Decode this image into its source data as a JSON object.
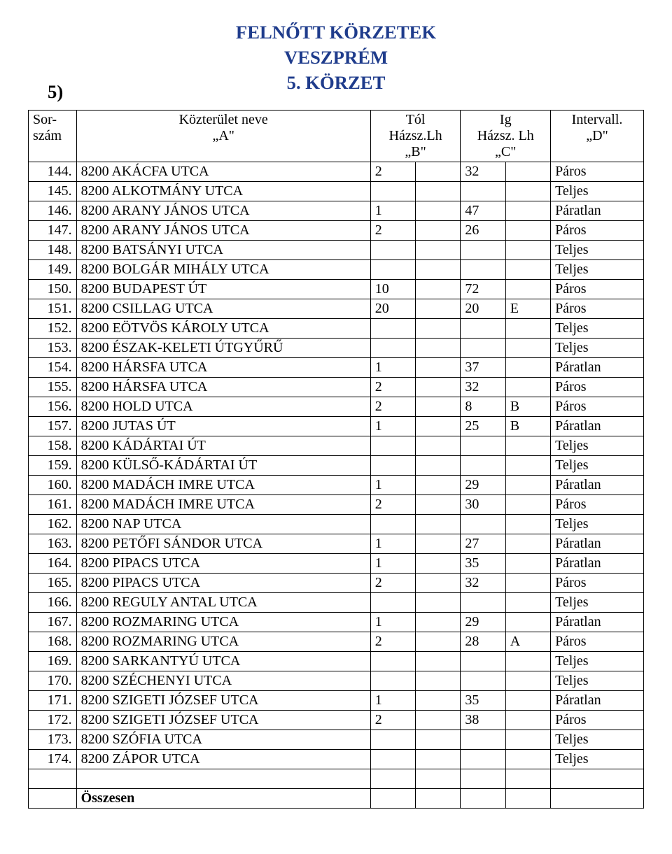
{
  "title": {
    "line1": "FELNŐTT KÖRZETEK",
    "line2": "VESZPRÉM",
    "line3": "5. KÖRZET",
    "color": "#1f3c8c",
    "fontsize_pt": 20
  },
  "district_number": "5)",
  "header": {
    "sorszam": "Sor-\nszám",
    "nev": "Közterület neve\n„A\"",
    "tol": "Tól\nHázsz.Lh\n„B\"",
    "ig": "Ig\nHázsz. Lh\n„C\"",
    "intervall": "Intervall.\n„D\""
  },
  "rows": [
    {
      "n": "144.",
      "name": "8200 AKÁCFA UTCA",
      "tol": "2",
      "tolx": "",
      "ig": "32",
      "igx": "",
      "int": "Páros"
    },
    {
      "n": "145.",
      "name": "8200 ALKOTMÁNY UTCA",
      "tol": "",
      "tolx": "",
      "ig": "",
      "igx": "",
      "int": "Teljes"
    },
    {
      "n": "146.",
      "name": "8200 ARANY JÁNOS UTCA",
      "tol": "1",
      "tolx": "",
      "ig": "47",
      "igx": "",
      "int": "Páratlan"
    },
    {
      "n": "147.",
      "name": "8200 ARANY JÁNOS UTCA",
      "tol": "2",
      "tolx": "",
      "ig": "26",
      "igx": "",
      "int": "Páros"
    },
    {
      "n": "148.",
      "name": "8200 BATSÁNYI UTCA",
      "tol": "",
      "tolx": "",
      "ig": "",
      "igx": "",
      "int": "Teljes"
    },
    {
      "n": "149.",
      "name": "8200 BOLGÁR MIHÁLY UTCA",
      "tol": "",
      "tolx": "",
      "ig": "",
      "igx": "",
      "int": "Teljes"
    },
    {
      "n": "150.",
      "name": "8200 BUDAPEST ÚT",
      "tol": "10",
      "tolx": "",
      "ig": "72",
      "igx": "",
      "int": "Páros"
    },
    {
      "n": "151.",
      "name": "8200 CSILLAG UTCA",
      "tol": "20",
      "tolx": "",
      "ig": "20",
      "igx": "E",
      "int": "Páros"
    },
    {
      "n": "152.",
      "name": "8200 EÖTVÖS KÁROLY UTCA",
      "tol": "",
      "tolx": "",
      "ig": "",
      "igx": "",
      "int": "Teljes"
    },
    {
      "n": "153.",
      "name": "8200 ÉSZAK-KELETI ÚTGYŰRŰ",
      "tol": "",
      "tolx": "",
      "ig": "",
      "igx": "",
      "int": "Teljes"
    },
    {
      "n": "154.",
      "name": "8200 HÁRSFA UTCA",
      "tol": "1",
      "tolx": "",
      "ig": "37",
      "igx": "",
      "int": "Páratlan"
    },
    {
      "n": "155.",
      "name": "8200 HÁRSFA UTCA",
      "tol": "2",
      "tolx": "",
      "ig": "32",
      "igx": "",
      "int": "Páros"
    },
    {
      "n": "156.",
      "name": "8200 HOLD UTCA",
      "tol": "2",
      "tolx": "",
      "ig": "8",
      "igx": "B",
      "int": "Páros"
    },
    {
      "n": "157.",
      "name": "8200 JUTAS ÚT",
      "tol": "1",
      "tolx": "",
      "ig": "25",
      "igx": "B",
      "int": "Páratlan"
    },
    {
      "n": "158.",
      "name": "8200 KÁDÁRTAI ÚT",
      "tol": "",
      "tolx": "",
      "ig": "",
      "igx": "",
      "int": "Teljes"
    },
    {
      "n": "159.",
      "name": "8200 KÜLSŐ-KÁDÁRTAI ÚT",
      "tol": "",
      "tolx": "",
      "ig": "",
      "igx": "",
      "int": "Teljes"
    },
    {
      "n": "160.",
      "name": "8200 MADÁCH IMRE UTCA",
      "tol": "1",
      "tolx": "",
      "ig": "29",
      "igx": "",
      "int": "Páratlan"
    },
    {
      "n": "161.",
      "name": "8200 MADÁCH IMRE UTCA",
      "tol": "2",
      "tolx": "",
      "ig": "30",
      "igx": "",
      "int": "Páros"
    },
    {
      "n": "162.",
      "name": "8200 NAP UTCA",
      "tol": "",
      "tolx": "",
      "ig": "",
      "igx": "",
      "int": "Teljes"
    },
    {
      "n": "163.",
      "name": "8200 PETŐFI SÁNDOR UTCA",
      "tol": "1",
      "tolx": "",
      "ig": "27",
      "igx": "",
      "int": "Páratlan"
    },
    {
      "n": "164.",
      "name": "8200 PIPACS UTCA",
      "tol": "1",
      "tolx": "",
      "ig": "35",
      "igx": "",
      "int": "Páratlan"
    },
    {
      "n": "165.",
      "name": "8200 PIPACS UTCA",
      "tol": "2",
      "tolx": "",
      "ig": "32",
      "igx": "",
      "int": "Páros"
    },
    {
      "n": "166.",
      "name": "8200 REGULY ANTAL UTCA",
      "tol": "",
      "tolx": "",
      "ig": "",
      "igx": "",
      "int": "Teljes"
    },
    {
      "n": "167.",
      "name": "8200 ROZMARING UTCA",
      "tol": "1",
      "tolx": "",
      "ig": "29",
      "igx": "",
      "int": "Páratlan"
    },
    {
      "n": "168.",
      "name": "8200 ROZMARING UTCA",
      "tol": "2",
      "tolx": "",
      "ig": "28",
      "igx": "A",
      "int": "Páros"
    },
    {
      "n": "169.",
      "name": "8200 SARKANTYÚ UTCA",
      "tol": "",
      "tolx": "",
      "ig": "",
      "igx": "",
      "int": "Teljes"
    },
    {
      "n": "170.",
      "name": "8200 SZÉCHENYI UTCA",
      "tol": "",
      "tolx": "",
      "ig": "",
      "igx": "",
      "int": "Teljes"
    },
    {
      "n": "171.",
      "name": "8200 SZIGETI JÓZSEF UTCA",
      "tol": "1",
      "tolx": "",
      "ig": "35",
      "igx": "",
      "int": "Páratlan"
    },
    {
      "n": "172.",
      "name": "8200 SZIGETI JÓZSEF UTCA",
      "tol": "2",
      "tolx": "",
      "ig": "38",
      "igx": "",
      "int": "Páros"
    },
    {
      "n": "173.",
      "name": "8200 SZÓFIA UTCA",
      "tol": "",
      "tolx": "",
      "ig": "",
      "igx": "",
      "int": "Teljes"
    },
    {
      "n": "174.",
      "name": "8200 ZÁPOR UTCA",
      "tol": "",
      "tolx": "",
      "ig": "",
      "igx": "",
      "int": "Teljes"
    }
  ],
  "summary_label": "Összesen",
  "body_fontsize_pt": 15
}
